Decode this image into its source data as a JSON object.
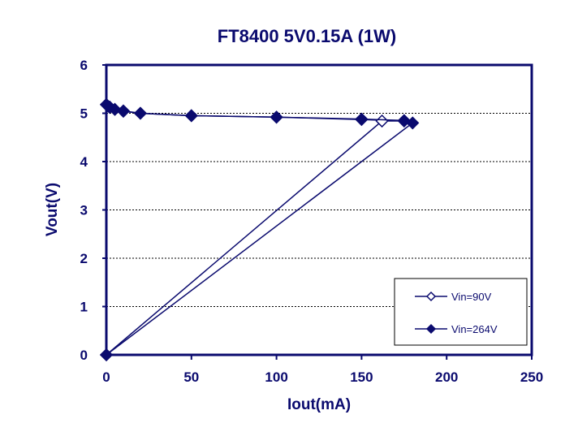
{
  "chart_data": {
    "type": "scatter",
    "title": "FT8400 5V0.15A (1W)",
    "xlabel": "Iout(mA)",
    "ylabel": "Vout(V)",
    "xlim": [
      0,
      250
    ],
    "ylim": [
      0,
      6
    ],
    "x_ticks": [
      "0",
      "50",
      "100",
      "150",
      "200",
      "250"
    ],
    "y_ticks": [
      "0",
      "1",
      "2",
      "3",
      "4",
      "5",
      "6"
    ],
    "grid": "horizontal dashed",
    "legend_position": "bottom-right",
    "series": [
      {
        "name": "Vin=90V",
        "marker": "diamond-open",
        "color": "#0a0a6e",
        "x": [
          0,
          2,
          5,
          10,
          20,
          50,
          100,
          150,
          175,
          162,
          0
        ],
        "y": [
          5.18,
          5.12,
          5.08,
          5.04,
          5.0,
          4.95,
          4.92,
          4.87,
          4.84,
          4.84,
          0
        ]
      },
      {
        "name": "Vin=264V",
        "marker": "diamond-filled",
        "color": "#0a0a6e",
        "x": [
          0,
          2,
          5,
          10,
          20,
          50,
          100,
          150,
          175,
          180,
          0
        ],
        "y": [
          5.18,
          5.13,
          5.08,
          5.05,
          5.0,
          4.95,
          4.92,
          4.88,
          4.85,
          4.8,
          0
        ]
      }
    ]
  }
}
